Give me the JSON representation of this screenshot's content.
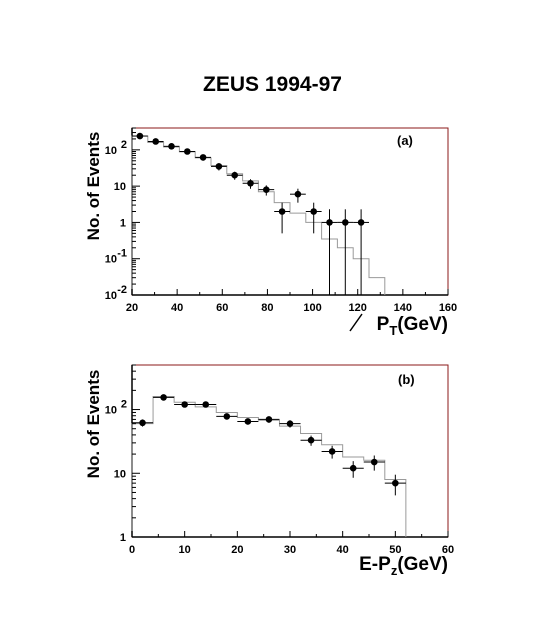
{
  "title": "ZEUS 1994-97",
  "chart_data": [
    {
      "type": "histogram",
      "panel_label": "(a)",
      "xlabel": "P̸_T(GeV)",
      "xlabel_main": "P",
      "xlabel_sub": "T",
      "xlabel_unit": "(GeV)",
      "ylabel": "No. of Events",
      "y_scale": "log",
      "xlim": [
        20,
        160
      ],
      "ylim": [
        0.01,
        400
      ],
      "x_ticks": [
        "20",
        "40",
        "60",
        "80",
        "100",
        "120",
        "140",
        "160"
      ],
      "y_ticks": [
        {
          "value": 0.01,
          "base": "10",
          "exp": "-2"
        },
        {
          "value": 0.1,
          "base": "10",
          "exp": "-1"
        },
        {
          "value": 1,
          "base": "1",
          "exp": ""
        },
        {
          "value": 10,
          "base": "10",
          "exp": ""
        },
        {
          "value": 100,
          "base": "10",
          "exp": "2"
        }
      ],
      "data_points": {
        "x": [
          23.5,
          30.5,
          37.5,
          44.5,
          51.5,
          58.5,
          65.5,
          72.5,
          79.5,
          86.5,
          93.5,
          100.5,
          107.5,
          114.5,
          121.5
        ],
        "y": [
          240,
          170,
          125,
          90,
          62,
          35,
          20,
          12,
          8,
          2,
          6,
          2,
          1,
          1,
          1
        ],
        "y_low": [
          210,
          150,
          105,
          75,
          50,
          27,
          15,
          8.5,
          5.5,
          0.5,
          3.5,
          0.5,
          0.01,
          0.01,
          0.01
        ],
        "y_high": [
          270,
          190,
          145,
          105,
          74,
          43,
          25,
          15.5,
          10.5,
          3.5,
          8.5,
          3.5,
          2.3,
          2.3,
          2.3
        ]
      },
      "mc_histogram": {
        "edges": [
          20,
          27,
          34,
          41,
          48,
          55,
          62,
          69,
          76,
          83,
          90,
          97,
          104,
          111,
          118,
          125,
          132
        ],
        "values": [
          240,
          160,
          120,
          88,
          60,
          37,
          22,
          14,
          7,
          3.5,
          1.8,
          1.0,
          0.35,
          0.2,
          0.1,
          0.03
        ]
      }
    },
    {
      "type": "histogram",
      "panel_label": "(b)",
      "xlabel": "E-P_z(GeV)",
      "xlabel_main": "E-P",
      "xlabel_sub": "z",
      "xlabel_unit": "(GeV)",
      "ylabel": "No. of Events",
      "y_scale": "log",
      "xlim": [
        0,
        60
      ],
      "ylim": [
        1,
        500
      ],
      "x_ticks": [
        "0",
        "10",
        "20",
        "30",
        "40",
        "50",
        "60"
      ],
      "y_ticks": [
        {
          "value": 1,
          "base": "1",
          "exp": ""
        },
        {
          "value": 10,
          "base": "10",
          "exp": ""
        },
        {
          "value": 100,
          "base": "10",
          "exp": "2"
        }
      ],
      "data_points": {
        "x": [
          2,
          6,
          10,
          14,
          18,
          22,
          26,
          30,
          34,
          38,
          42,
          46,
          50
        ],
        "y": [
          62,
          155,
          120,
          120,
          78,
          65,
          70,
          60,
          33,
          22,
          12,
          15,
          7
        ],
        "y_low": [
          54,
          143,
          110,
          110,
          70,
          58,
          62,
          52,
          27,
          17,
          8.5,
          11,
          4.5
        ],
        "y_high": [
          70,
          167,
          130,
          130,
          86,
          72,
          78,
          68,
          39,
          27,
          15.5,
          19,
          9.5
        ]
      },
      "mc_histogram": {
        "edges": [
          0,
          4,
          8,
          12,
          16,
          20,
          24,
          28,
          32,
          36,
          40,
          44,
          48,
          52
        ],
        "values": [
          60,
          160,
          130,
          110,
          90,
          75,
          68,
          55,
          42,
          28,
          18,
          16,
          8
        ]
      }
    }
  ]
}
